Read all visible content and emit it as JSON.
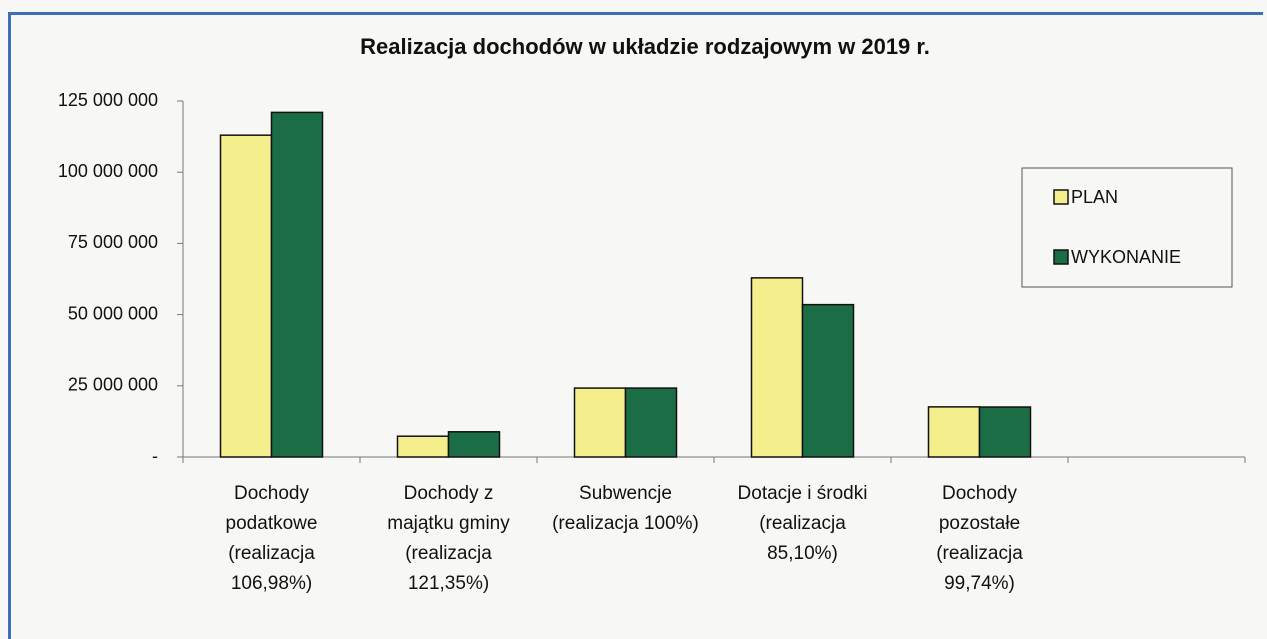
{
  "chart_data": {
    "type": "bar",
    "title": "Realizacja dochodów w układzie rodzajowym w 2019 r.",
    "categories": [
      "Dochody podatkowe (realizacja 106,98%)",
      "Dochody z majątku gminy (realizacja 121,35%)",
      "Subwencje (realizacja 100%)",
      "Dotacje i środki (realizacja 85,10%)",
      "Dochody pozostałe (realizacja 99,74%)",
      null
    ],
    "series": [
      {
        "name": "PLAN",
        "color": "#f4ef8c",
        "values": [
          113000000,
          7300000,
          24200000,
          62900000,
          17600000,
          null
        ]
      },
      {
        "name": "WYKONANIE",
        "color": "#1b6d45",
        "values": [
          121000000,
          8850000,
          24200000,
          53500000,
          17550000,
          null
        ]
      }
    ],
    "ylim": [
      0,
      125000000
    ],
    "yticks": [
      {
        "value": 0,
        "label": "-"
      },
      {
        "value": 25000000,
        "label": "25 000 000"
      },
      {
        "value": 50000000,
        "label": "50 000 000"
      },
      {
        "value": 75000000,
        "label": "75 000 000"
      },
      {
        "value": 100000000,
        "label": "100 000 000"
      },
      {
        "value": 125000000,
        "label": "125 000 000"
      }
    ],
    "legend": "right"
  }
}
